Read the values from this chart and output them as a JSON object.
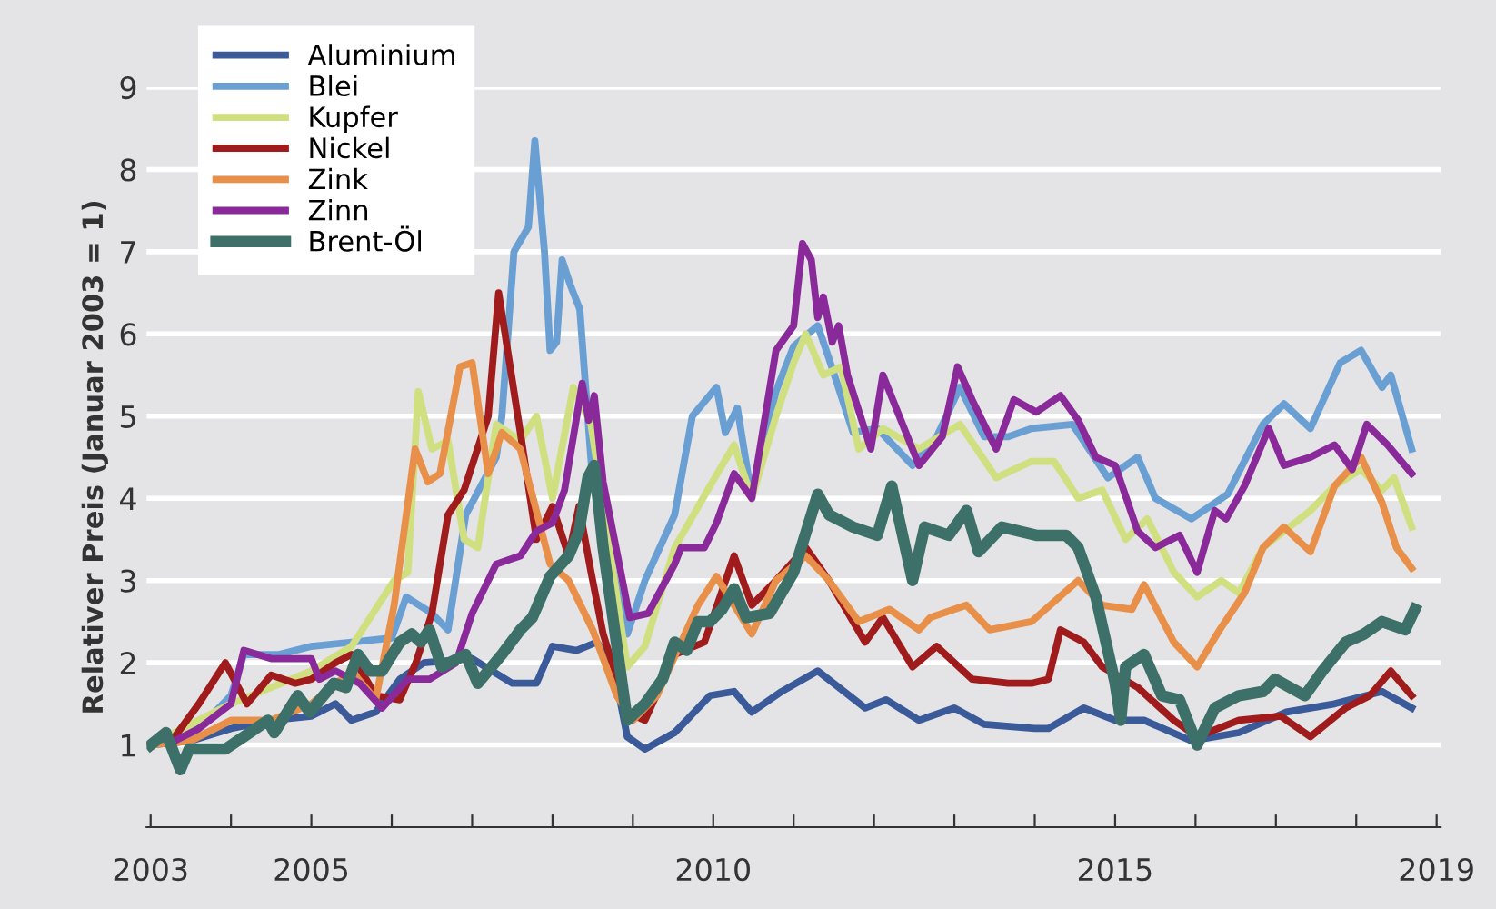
{
  "chart_data": {
    "type": "line",
    "ylabel": "Relativer Preis (Januar 2003 = 1)",
    "xlim": [
      2002.95,
      2019.05
    ],
    "ylim": [
      0,
      9
    ],
    "xticks": [
      2003,
      {
        "value": 2004,
        "label": null
      },
      2005,
      {
        "value": 2006,
        "label": null
      },
      {
        "value": 2007,
        "label": null
      },
      {
        "value": 2008,
        "label": null
      },
      {
        "value": 2009,
        "label": null
      },
      2010,
      {
        "value": 2011,
        "label": null
      },
      {
        "value": 2012,
        "label": null
      },
      {
        "value": 2013,
        "label": null
      },
      {
        "value": 2014,
        "label": null
      },
      2015,
      {
        "value": 2016,
        "label": null
      },
      {
        "value": 2017,
        "label": null
      },
      {
        "value": 2018,
        "label": null
      },
      2019
    ],
    "yticks": [
      1,
      2,
      3,
      4,
      5,
      6,
      7,
      8,
      9
    ],
    "grid": "y",
    "legend": "top left",
    "series": [
      {
        "name": "Aluminium",
        "color": "#3a5a9a",
        "x": [
          2003.0,
          2003.5,
          2004.0,
          2004.5,
          2005.0,
          2005.3,
          2005.5,
          2005.8,
          2006.1,
          2006.4,
          2007.0,
          2007.5,
          2007.8,
          2008.0,
          2008.3,
          2008.55,
          2008.75,
          2008.93,
          2009.15,
          2009.52,
          2009.96,
          2010.26,
          2010.48,
          2010.85,
          2011.3,
          2011.89,
          2012.15,
          2012.56,
          2013.0,
          2013.37,
          2014.0,
          2014.17,
          2014.61,
          2015.0,
          2015.36,
          2015.95,
          2016.54,
          2017.13,
          2017.73,
          2018.32,
          2018.69
        ],
        "values": [
          1.0,
          1.05,
          1.2,
          1.3,
          1.35,
          1.5,
          1.3,
          1.4,
          1.8,
          2.0,
          2.05,
          1.75,
          1.75,
          2.2,
          2.15,
          2.25,
          2.0,
          1.1,
          0.95,
          1.15,
          1.6,
          1.65,
          1.4,
          1.65,
          1.9,
          1.45,
          1.55,
          1.3,
          1.45,
          1.25,
          1.2,
          1.2,
          1.45,
          1.3,
          1.3,
          1.05,
          1.15,
          1.4,
          1.5,
          1.65,
          1.45
        ]
      },
      {
        "name": "Blei",
        "color": "#6a9fd4",
        "x": [
          2003.0,
          2003.5,
          2004.0,
          2004.16,
          2004.6,
          2005.0,
          2005.5,
          2006.0,
          2006.18,
          2006.5,
          2006.7,
          2006.92,
          2007.3,
          2007.37,
          2007.52,
          2007.7,
          2007.78,
          2007.9,
          2007.97,
          2008.05,
          2008.12,
          2008.22,
          2008.34,
          2008.5,
          2008.93,
          2009.15,
          2009.52,
          2009.74,
          2010.04,
          2010.15,
          2010.3,
          2010.48,
          2010.78,
          2011.0,
          2011.3,
          2011.44,
          2011.74,
          2012.04,
          2012.48,
          2012.78,
          2013.07,
          2013.37,
          2013.67,
          2013.96,
          2014.47,
          2014.91,
          2015.28,
          2015.5,
          2015.95,
          2016.4,
          2016.84,
          2017.1,
          2017.43,
          2017.8,
          2018.06,
          2018.32,
          2018.43,
          2018.69
        ],
        "values": [
          1.0,
          1.1,
          1.6,
          2.1,
          2.1,
          2.2,
          2.25,
          2.3,
          2.8,
          2.6,
          2.4,
          3.8,
          4.5,
          5.0,
          7.0,
          7.3,
          8.35,
          7.0,
          5.8,
          5.9,
          6.9,
          6.6,
          6.3,
          4.2,
          2.35,
          3.0,
          3.8,
          5.0,
          5.35,
          4.8,
          5.1,
          4.0,
          5.3,
          5.85,
          6.1,
          5.7,
          4.8,
          4.85,
          4.4,
          4.75,
          5.35,
          4.75,
          4.75,
          4.85,
          4.9,
          4.25,
          4.5,
          4.0,
          3.75,
          4.05,
          4.9,
          5.15,
          4.85,
          5.65,
          5.8,
          5.35,
          5.5,
          4.6
        ]
      },
      {
        "name": "Kupfer",
        "color": "#d0e080",
        "x": [
          2003.0,
          2004.0,
          2004.5,
          2005.0,
          2005.5,
          2006.03,
          2006.2,
          2006.33,
          2006.5,
          2006.7,
          2006.9,
          2007.07,
          2007.3,
          2007.6,
          2007.8,
          2008.0,
          2008.26,
          2008.48,
          2008.93,
          2009.15,
          2009.52,
          2009.96,
          2010.26,
          2010.48,
          2010.78,
          2011.0,
          2011.15,
          2011.37,
          2011.59,
          2011.81,
          2012.11,
          2012.56,
          2013.07,
          2013.52,
          2013.96,
          2014.24,
          2014.54,
          2014.84,
          2015.13,
          2015.4,
          2015.73,
          2016.02,
          2016.32,
          2016.54,
          2016.84,
          2017.43,
          2017.73,
          2018.06,
          2018.32,
          2018.47,
          2018.69
        ],
        "values": [
          1.0,
          1.5,
          1.7,
          1.9,
          2.2,
          3.0,
          3.1,
          5.3,
          4.6,
          4.7,
          3.5,
          3.4,
          4.9,
          4.7,
          5.0,
          4.0,
          5.35,
          4.9,
          1.95,
          2.2,
          3.4,
          4.15,
          4.65,
          4.0,
          5.0,
          5.65,
          6.0,
          5.5,
          5.6,
          4.6,
          4.85,
          4.6,
          4.9,
          4.25,
          4.45,
          4.45,
          4.0,
          4.1,
          3.5,
          3.75,
          3.1,
          2.8,
          3.0,
          2.85,
          3.4,
          3.85,
          4.15,
          4.35,
          4.1,
          4.25,
          3.65
        ]
      },
      {
        "name": "Nickel",
        "color": "#a01c1c",
        "x": [
          2003.0,
          2003.3,
          2003.6,
          2003.93,
          2004.2,
          2004.5,
          2004.8,
          2005.0,
          2005.3,
          2005.5,
          2005.8,
          2006.1,
          2006.3,
          2006.5,
          2006.7,
          2006.9,
          2007.2,
          2007.33,
          2007.6,
          2007.8,
          2008.0,
          2008.2,
          2008.33,
          2008.48,
          2008.63,
          2008.93,
          2009.15,
          2009.52,
          2009.89,
          2010.26,
          2010.48,
          2010.78,
          2011.15,
          2011.44,
          2011.89,
          2012.11,
          2012.48,
          2012.78,
          2013.22,
          2013.67,
          2013.96,
          2014.17,
          2014.32,
          2014.61,
          2014.84,
          2015.28,
          2015.73,
          2016.02,
          2016.54,
          2017.06,
          2017.43,
          2017.87,
          2018.17,
          2018.43,
          2018.69
        ],
        "values": [
          1.0,
          1.1,
          1.5,
          2.0,
          1.5,
          1.85,
          1.75,
          1.8,
          2.0,
          2.1,
          1.6,
          1.55,
          2.0,
          2.6,
          3.8,
          4.1,
          5.0,
          6.5,
          4.8,
          3.5,
          3.9,
          3.3,
          3.9,
          3.1,
          2.35,
          1.4,
          1.3,
          2.1,
          2.25,
          3.3,
          2.7,
          3.0,
          3.4,
          3.0,
          2.25,
          2.55,
          1.95,
          2.2,
          1.8,
          1.75,
          1.75,
          1.8,
          2.4,
          2.25,
          1.95,
          1.7,
          1.3,
          1.1,
          1.3,
          1.35,
          1.1,
          1.45,
          1.6,
          1.9,
          1.6
        ]
      },
      {
        "name": "Zink",
        "color": "#e8904a",
        "x": [
          2003.0,
          2003.5,
          2004.0,
          2004.5,
          2005.0,
          2005.5,
          2005.8,
          2006.03,
          2006.29,
          2006.45,
          2006.6,
          2006.85,
          2007.0,
          2007.2,
          2007.37,
          2007.6,
          2007.97,
          2008.2,
          2008.5,
          2008.8,
          2009.0,
          2009.3,
          2009.81,
          2010.04,
          2010.48,
          2010.78,
          2011.15,
          2011.44,
          2011.81,
          2012.19,
          2012.56,
          2012.7,
          2013.15,
          2013.44,
          2013.96,
          2014.54,
          2014.84,
          2015.21,
          2015.36,
          2015.73,
          2016.02,
          2016.3,
          2016.61,
          2016.84,
          2017.1,
          2017.43,
          2017.73,
          2018.06,
          2018.32,
          2018.5,
          2018.69
        ],
        "values": [
          1.0,
          1.05,
          1.3,
          1.3,
          1.5,
          1.9,
          1.55,
          2.7,
          4.6,
          4.2,
          4.3,
          5.6,
          5.65,
          4.3,
          4.8,
          4.6,
          3.2,
          3.0,
          2.4,
          1.6,
          1.3,
          1.6,
          2.7,
          3.05,
          2.35,
          3.0,
          3.3,
          3.0,
          2.5,
          2.65,
          2.4,
          2.55,
          2.7,
          2.4,
          2.5,
          3.0,
          2.7,
          2.65,
          2.95,
          2.25,
          1.95,
          2.4,
          2.85,
          3.4,
          3.65,
          3.35,
          4.15,
          4.5,
          3.95,
          3.4,
          3.15
        ]
      },
      {
        "name": "Zinn",
        "color": "#8a2a9a",
        "x": [
          2003.3,
          2003.6,
          2004.0,
          2004.16,
          2004.5,
          2005.0,
          2005.1,
          2005.3,
          2005.6,
          2005.88,
          2006.2,
          2006.47,
          2006.8,
          2007.0,
          2007.3,
          2007.6,
          2007.8,
          2008.0,
          2008.15,
          2008.37,
          2008.45,
          2008.52,
          2008.63,
          2008.96,
          2009.19,
          2009.52,
          2009.6,
          2009.89,
          2010.04,
          2010.26,
          2010.48,
          2010.78,
          2011.0,
          2011.11,
          2011.22,
          2011.3,
          2011.37,
          2011.48,
          2011.56,
          2011.67,
          2011.96,
          2012.11,
          2012.56,
          2012.85,
          2013.04,
          2013.22,
          2013.52,
          2013.74,
          2014.02,
          2014.32,
          2014.54,
          2014.76,
          2015.0,
          2015.28,
          2015.5,
          2015.8,
          2016.02,
          2016.24,
          2016.38,
          2016.61,
          2016.91,
          2017.1,
          2017.43,
          2017.73,
          2017.95,
          2018.13,
          2018.39,
          2018.69
        ],
        "values": [
          1.05,
          1.2,
          1.5,
          2.15,
          2.05,
          2.05,
          1.8,
          1.9,
          1.75,
          1.45,
          1.8,
          1.8,
          2.0,
          2.6,
          3.2,
          3.3,
          3.6,
          3.7,
          4.1,
          5.4,
          4.95,
          5.25,
          4.2,
          2.55,
          2.6,
          3.2,
          3.4,
          3.4,
          3.7,
          4.3,
          4.0,
          5.8,
          6.1,
          7.1,
          6.9,
          6.2,
          6.45,
          5.9,
          6.1,
          5.5,
          4.6,
          5.5,
          4.4,
          4.75,
          5.6,
          5.2,
          4.6,
          5.2,
          5.05,
          5.25,
          4.95,
          4.5,
          4.4,
          3.6,
          3.4,
          3.55,
          3.1,
          3.85,
          3.75,
          4.15,
          4.85,
          4.4,
          4.5,
          4.65,
          4.35,
          4.9,
          4.65,
          4.3
        ]
      },
      {
        "name": "Brent-Öl",
        "color": "#3d7068",
        "x": [
          2003.0,
          2003.19,
          2003.37,
          2003.48,
          2003.93,
          2004.16,
          2004.46,
          2004.54,
          2004.83,
          2004.98,
          2005.28,
          2005.43,
          2005.58,
          2005.73,
          2005.88,
          2006.1,
          2006.25,
          2006.36,
          2006.47,
          2006.62,
          2006.92,
          2007.07,
          2007.37,
          2007.6,
          2007.75,
          2007.97,
          2008.2,
          2008.33,
          2008.44,
          2008.52,
          2008.63,
          2008.78,
          2008.93,
          2009.15,
          2009.37,
          2009.52,
          2009.67,
          2009.81,
          2009.96,
          2010.11,
          2010.26,
          2010.41,
          2010.7,
          2011.0,
          2011.3,
          2011.44,
          2011.74,
          2012.04,
          2012.22,
          2012.48,
          2012.63,
          2012.93,
          2013.15,
          2013.3,
          2013.59,
          2014.02,
          2014.39,
          2014.54,
          2014.76,
          2015.0,
          2015.07,
          2015.13,
          2015.36,
          2015.58,
          2015.8,
          2016.02,
          2016.24,
          2016.54,
          2016.84,
          2016.99,
          2017.36,
          2017.58,
          2017.87,
          2018.1,
          2018.32,
          2018.61,
          2018.73
        ],
        "values": [
          1.0,
          1.15,
          0.7,
          0.95,
          0.95,
          1.1,
          1.3,
          1.15,
          1.6,
          1.4,
          1.75,
          1.7,
          2.1,
          1.9,
          1.9,
          2.25,
          2.35,
          2.25,
          2.4,
          1.95,
          2.1,
          1.75,
          2.1,
          2.4,
          2.55,
          3.05,
          3.3,
          3.6,
          4.25,
          4.4,
          3.4,
          2.35,
          1.3,
          1.5,
          1.8,
          2.25,
          2.15,
          2.5,
          2.5,
          2.65,
          2.9,
          2.55,
          2.6,
          3.1,
          4.05,
          3.8,
          3.65,
          3.55,
          4.15,
          3.0,
          3.65,
          3.55,
          3.85,
          3.35,
          3.65,
          3.55,
          3.55,
          3.4,
          2.8,
          1.75,
          1.3,
          1.95,
          2.1,
          1.6,
          1.55,
          1.0,
          1.45,
          1.6,
          1.65,
          1.8,
          1.6,
          1.9,
          2.25,
          2.35,
          2.5,
          2.4,
          2.65
        ]
      }
    ]
  }
}
